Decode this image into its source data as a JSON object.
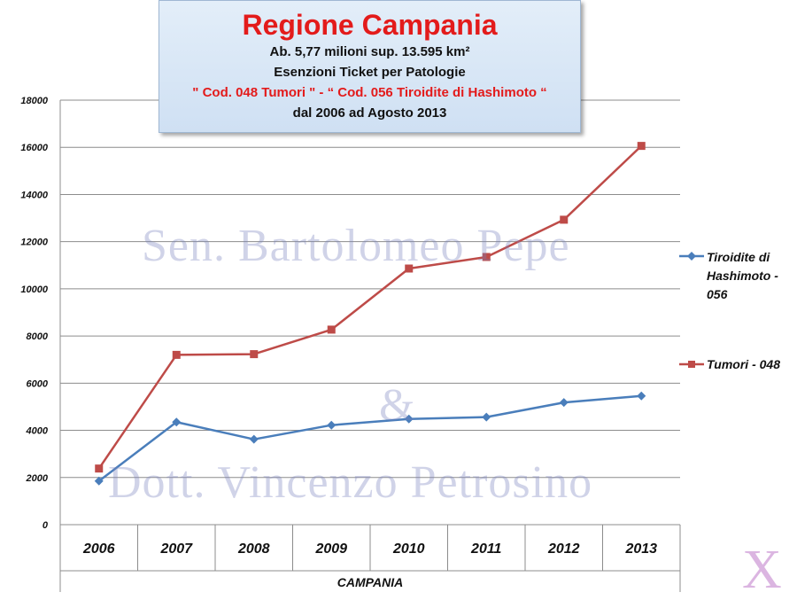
{
  "header": {
    "title": "Regione Campania",
    "line1": "Ab. 5,77 milioni  sup. 13.595 km²",
    "line2": "Esenzioni Ticket per Patologie",
    "line3": "\" Cod. 048 Tumori \"  - “ Cod. 056 Tiroidite di Hashimoto “",
    "line4": "dal 2006 ad Agosto 2013"
  },
  "watermark": {
    "line1": "Sen. Bartolomeo Pepe",
    "line2": "&",
    "line3": "Dott. Vincenzo Petrosino"
  },
  "logo": "X",
  "colors": {
    "hashimoto": "#4a7ebb",
    "tumori": "#be4b48",
    "grid": "#8c8c8c"
  },
  "chart_data": {
    "type": "line",
    "categories": [
      "2006",
      "2007",
      "2008",
      "2009",
      "2010",
      "2011",
      "2012",
      "2013"
    ],
    "xlabel": "CAMPANIA",
    "ylabel": "",
    "ylim": [
      0,
      18000
    ],
    "yticks": [
      0,
      2000,
      4000,
      6000,
      8000,
      10000,
      12000,
      14000,
      16000,
      18000
    ],
    "grid": true,
    "legend_position": "right",
    "series": [
      {
        "name": "Tiroidite di Hashimoto - 056",
        "color": "#4a7ebb",
        "marker": "diamond",
        "values": [
          1850,
          4350,
          3620,
          4220,
          4480,
          4560,
          5180,
          5460
        ]
      },
      {
        "name": "Tumori - 048",
        "color": "#be4b48",
        "marker": "square",
        "values": [
          2380,
          7200,
          7230,
          8270,
          10860,
          11350,
          12930,
          16060
        ]
      }
    ]
  }
}
